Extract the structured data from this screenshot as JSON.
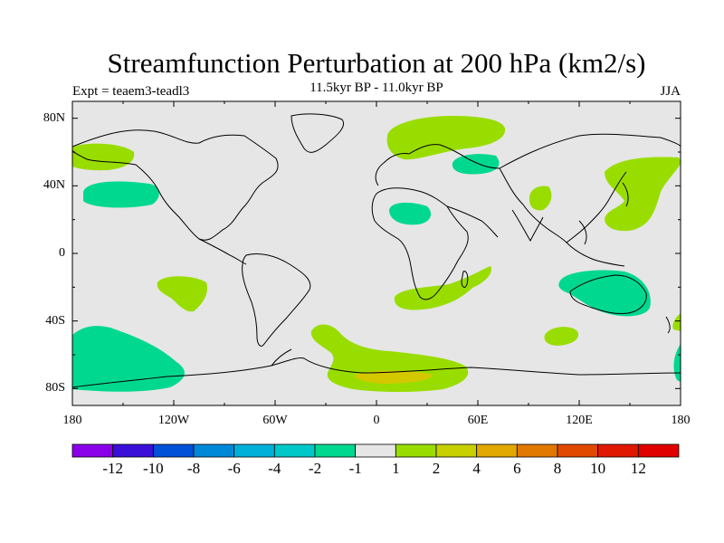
{
  "plot": {
    "title": "Streamfunction Perturbation at 200 hPa (km2/s)",
    "subtitle": "11.5kyr BP - 11.0kyr BP",
    "left_label": "Expt = teaem3-teadl3",
    "right_label": "JJA"
  },
  "axes": {
    "lat_labels": [
      {
        "text": "80N",
        "lat": 80
      },
      {
        "text": "40N",
        "lat": 40
      },
      {
        "text": "0",
        "lat": 0
      },
      {
        "text": "40S",
        "lat": -40
      },
      {
        "text": "80S",
        "lat": -80
      }
    ],
    "lon_labels": [
      {
        "text": "180",
        "lon": -180
      },
      {
        "text": "120W",
        "lon": -120
      },
      {
        "text": "60W",
        "lon": -60
      },
      {
        "text": "0",
        "lon": 0
      },
      {
        "text": "60E",
        "lon": 60
      },
      {
        "text": "120E",
        "lon": 120
      },
      {
        "text": "180",
        "lon": 180
      }
    ]
  },
  "colors": {
    "ocean_land": "#e6e6e6",
    "neg_light": "#00d890",
    "pos_light": "#99dd00",
    "pos_mid": "#d4c800"
  },
  "colorbar": {
    "colors": [
      "#8a00e8",
      "#3a10d8",
      "#0050d8",
      "#0088d8",
      "#00b0d8",
      "#00c8c8",
      "#00d890",
      "#e6e6e6",
      "#99dd00",
      "#c8d000",
      "#e0a800",
      "#e07800",
      "#e04800",
      "#e01800",
      "#e00000"
    ],
    "labels": [
      "-12",
      "-10",
      "-8",
      "-6",
      "-4",
      "-2",
      "-1",
      "1",
      "2",
      "4",
      "6",
      "8",
      "10",
      "12"
    ]
  }
}
